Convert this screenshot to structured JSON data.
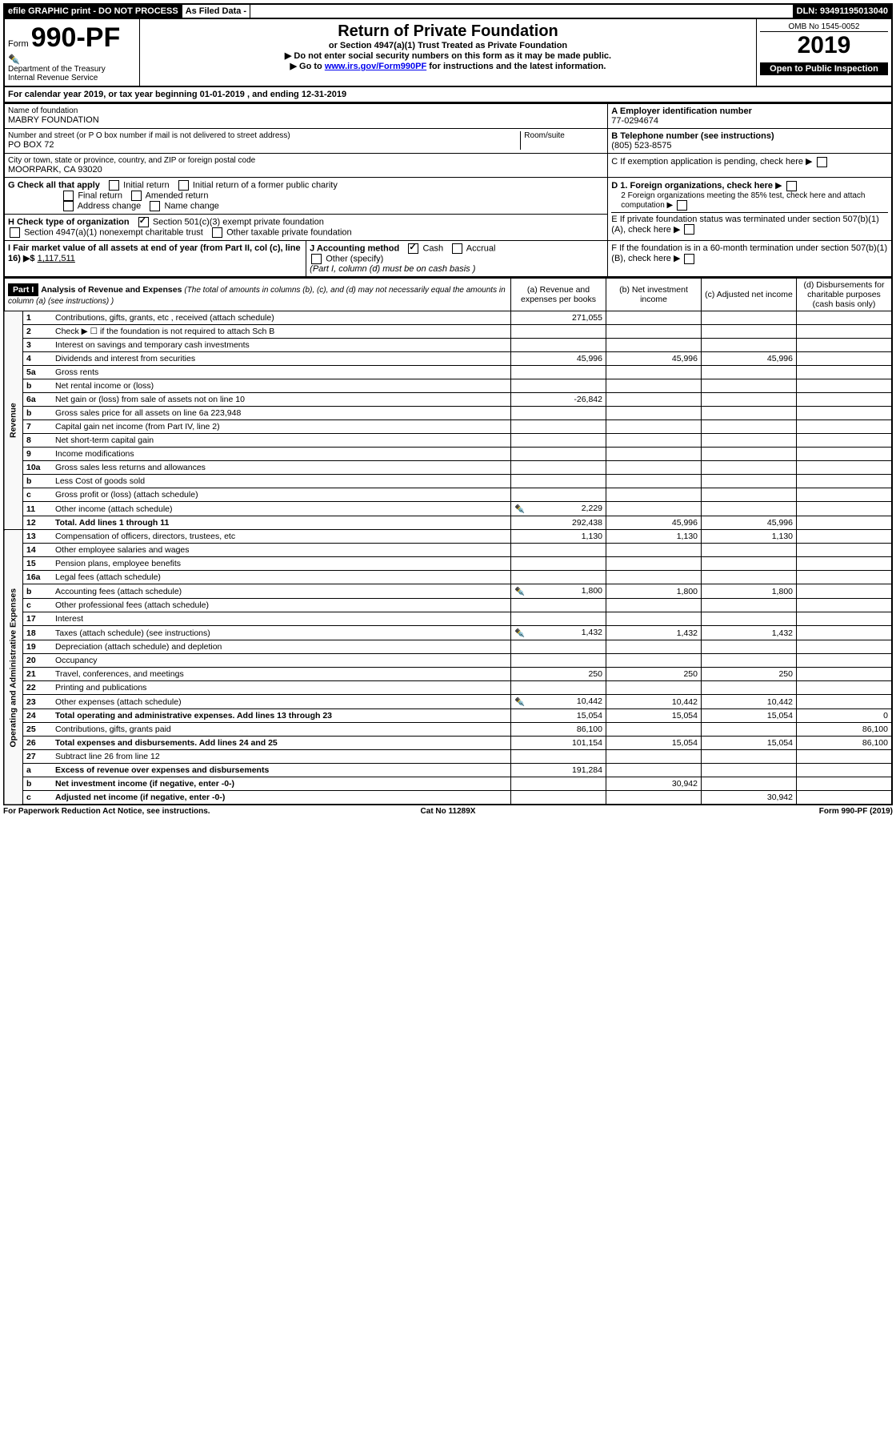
{
  "top_bar": {
    "efile": "efile GRAPHIC print - DO NOT PROCESS",
    "asfiled": "As Filed Data -",
    "dln": "DLN: 93491195013040"
  },
  "form_header": {
    "form_num_prefix": "Form",
    "form_num": "990-PF",
    "dept": "Department of the Treasury",
    "irs": "Internal Revenue Service",
    "title": "Return of Private Foundation",
    "subtitle": "or Section 4947(a)(1) Trust Treated as Private Foundation",
    "note1": "▶ Do not enter social security numbers on this form as it may be made public.",
    "note2_prefix": "▶ Go to ",
    "note2_link": "www.irs.gov/Form990PF",
    "note2_suffix": " for instructions and the latest information.",
    "omb": "OMB No 1545-0052",
    "year": "2019",
    "inspect": "Open to Public Inspection"
  },
  "cal_year": {
    "prefix": "For calendar year 2019, or tax year beginning ",
    "begin": "01-01-2019",
    "mid": " , and ending ",
    "end": "12-31-2019"
  },
  "id_block": {
    "name_label": "Name of foundation",
    "name": "MABRY FOUNDATION",
    "street_label": "Number and street (or P O  box number if mail is not delivered to street address)",
    "street": "PO BOX 72",
    "room_label": "Room/suite",
    "city_label": "City or town, state or province, country, and ZIP or foreign postal code",
    "city": "MOORPARK, CA  93020",
    "A": "A Employer identification number",
    "ein": "77-0294674",
    "B": "B Telephone number (see instructions)",
    "phone": "(805) 523-8575",
    "C": "C If exemption application is pending, check here",
    "D1": "D 1. Foreign organizations, check here",
    "D2": "2 Foreign organizations meeting the 85% test, check here and attach computation",
    "E": "E  If private foundation status was terminated under section 507(b)(1)(A), check here",
    "F": "F  If the foundation is in a 60-month termination under section 507(b)(1)(B), check here"
  },
  "G": {
    "label": "G Check all that apply",
    "opts": [
      "Initial return",
      "Initial return of a former public charity",
      "Final return",
      "Amended return",
      "Address change",
      "Name change"
    ]
  },
  "H": {
    "label": "H Check type of organization",
    "o1": "Section 501(c)(3) exempt private foundation",
    "o2": "Section 4947(a)(1) nonexempt charitable trust",
    "o3": "Other taxable private foundation"
  },
  "I": {
    "label": "I Fair market value of all assets at end of year (from Part II, col  (c), line 16) ▶$ ",
    "val": "1,117,511"
  },
  "J": {
    "label": "J Accounting method",
    "cash": "Cash",
    "accrual": "Accrual",
    "other": "Other (specify)",
    "note": "(Part I, column (d) must be on cash basis )"
  },
  "partI": {
    "hdr": "Part I",
    "title": "Analysis of Revenue and Expenses",
    "title_note": "(The total of amounts in columns (b), (c), and (d) may not necessarily equal the amounts in column (a) (see instructions) )",
    "col_a": "(a) Revenue and expenses per books",
    "col_b": "(b) Net investment income",
    "col_c": "(c) Adjusted net income",
    "col_d": "(d) Disbursements for charitable purposes (cash basis only)"
  },
  "rev_side": "Revenue",
  "exp_side": "Operating and Administrative Expenses",
  "rows": [
    {
      "n": "1",
      "t": "Contributions, gifts, grants, etc , received (attach schedule)",
      "a": "271,055"
    },
    {
      "n": "2",
      "t": "Check ▶ ☐ if the foundation is not required to attach Sch B"
    },
    {
      "n": "3",
      "t": "Interest on savings and temporary cash investments"
    },
    {
      "n": "4",
      "t": "Dividends and interest from securities",
      "a": "45,996",
      "b": "45,996",
      "c": "45,996"
    },
    {
      "n": "5a",
      "t": "Gross rents"
    },
    {
      "n": "b",
      "t": "Net rental income or (loss)"
    },
    {
      "n": "6a",
      "t": "Net gain or (loss) from sale of assets not on line 10",
      "a": "-26,842"
    },
    {
      "n": "b",
      "t": "Gross sales price for all assets on line 6a            223,948"
    },
    {
      "n": "7",
      "t": "Capital gain net income (from Part IV, line 2)"
    },
    {
      "n": "8",
      "t": "Net short-term capital gain"
    },
    {
      "n": "9",
      "t": "Income modifications"
    },
    {
      "n": "10a",
      "t": "Gross sales less returns and allowances"
    },
    {
      "n": "b",
      "t": "Less  Cost of goods sold"
    },
    {
      "n": "c",
      "t": "Gross profit or (loss) (attach schedule)"
    },
    {
      "n": "11",
      "t": "Other income (attach schedule)",
      "a": "2,229",
      "icon": true
    },
    {
      "n": "12",
      "t": "Total. Add lines 1 through 11",
      "a": "292,438",
      "b": "45,996",
      "c": "45,996",
      "bold": true
    },
    {
      "n": "13",
      "t": "Compensation of officers, directors, trustees, etc",
      "a": "1,130",
      "b": "1,130",
      "c": "1,130"
    },
    {
      "n": "14",
      "t": "Other employee salaries and wages"
    },
    {
      "n": "15",
      "t": "Pension plans, employee benefits"
    },
    {
      "n": "16a",
      "t": "Legal fees (attach schedule)"
    },
    {
      "n": "b",
      "t": "Accounting fees (attach schedule)",
      "a": "1,800",
      "b": "1,800",
      "c": "1,800",
      "icon": true
    },
    {
      "n": "c",
      "t": "Other professional fees (attach schedule)"
    },
    {
      "n": "17",
      "t": "Interest"
    },
    {
      "n": "18",
      "t": "Taxes (attach schedule) (see instructions)",
      "a": "1,432",
      "b": "1,432",
      "c": "1,432",
      "icon": true
    },
    {
      "n": "19",
      "t": "Depreciation (attach schedule) and depletion"
    },
    {
      "n": "20",
      "t": "Occupancy"
    },
    {
      "n": "21",
      "t": "Travel, conferences, and meetings",
      "a": "250",
      "b": "250",
      "c": "250"
    },
    {
      "n": "22",
      "t": "Printing and publications"
    },
    {
      "n": "23",
      "t": "Other expenses (attach schedule)",
      "a": "10,442",
      "b": "10,442",
      "c": "10,442",
      "icon": true
    },
    {
      "n": "24",
      "t": "Total operating and administrative expenses. Add lines 13 through 23",
      "a": "15,054",
      "b": "15,054",
      "c": "15,054",
      "d": "0",
      "bold": true
    },
    {
      "n": "25",
      "t": "Contributions, gifts, grants paid",
      "a": "86,100",
      "d": "86,100"
    },
    {
      "n": "26",
      "t": "Total expenses and disbursements. Add lines 24 and 25",
      "a": "101,154",
      "b": "15,054",
      "c": "15,054",
      "d": "86,100",
      "bold": true
    },
    {
      "n": "27",
      "t": "Subtract line 26 from line 12"
    },
    {
      "n": "a",
      "t": "Excess of revenue over expenses and disbursements",
      "a": "191,284",
      "bold": true
    },
    {
      "n": "b",
      "t": "Net investment income (if negative, enter -0-)",
      "b": "30,942",
      "bold": true
    },
    {
      "n": "c",
      "t": "Adjusted net income (if negative, enter -0-)",
      "c": "30,942",
      "bold": true
    }
  ],
  "footer": {
    "left": "For Paperwork Reduction Act Notice, see instructions.",
    "mid": "Cat No 11289X",
    "right": "Form 990-PF (2019)"
  }
}
